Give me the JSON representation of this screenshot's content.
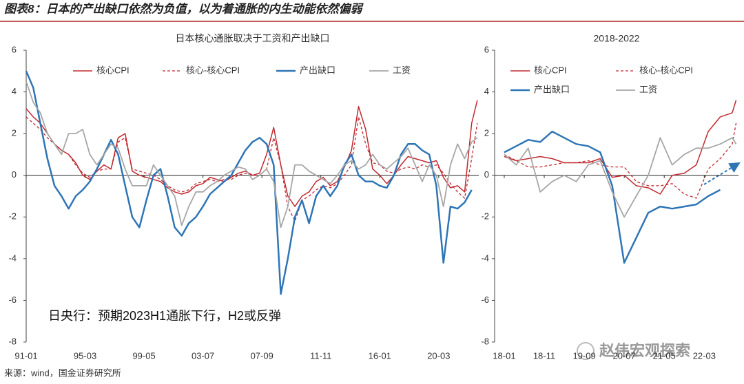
{
  "title": "图表8：日本的产出缺口依然为负值，以为着通胀的内生动能依然偏弱",
  "source": "来源：wind，国金证券研究所",
  "watermark": "赵伟宏观探索",
  "chart_data": [
    {
      "type": "line",
      "title": "日本核心通胀取决于工资和产出缺口",
      "annotation": "日央行：预期2023H1通胀下行，H2或反弹",
      "xlim": [
        1991,
        2023
      ],
      "xticks": [
        {
          "value": 1991.0,
          "label": "91-01"
        },
        {
          "value": 1995.167,
          "label": "95-03"
        },
        {
          "value": 1999.333,
          "label": "99-05"
        },
        {
          "value": 2003.5,
          "label": "03-07"
        },
        {
          "value": 2007.667,
          "label": "07-09"
        },
        {
          "value": 2011.833,
          "label": "11-11"
        },
        {
          "value": 2016.0,
          "label": "16-01"
        },
        {
          "value": 2020.167,
          "label": "20-03"
        }
      ],
      "ylim": [
        -8,
        6
      ],
      "yticks": [
        -8,
        -6,
        -4,
        -2,
        0,
        2,
        4,
        6
      ],
      "x": [
        1991,
        1991.5,
        1992,
        1992.5,
        1993,
        1993.5,
        1994,
        1994.5,
        1995,
        1995.5,
        1996,
        1996.5,
        1997,
        1997.5,
        1998,
        1998.5,
        1999,
        1999.5,
        2000,
        2000.5,
        2001,
        2001.5,
        2002,
        2002.5,
        2003,
        2003.5,
        2004,
        2004.5,
        2005,
        2005.5,
        2006,
        2006.5,
        2007,
        2007.5,
        2008,
        2008.5,
        2009,
        2009.5,
        2010,
        2010.5,
        2011,
        2011.5,
        2012,
        2012.5,
        2013,
        2013.5,
        2014,
        2014.5,
        2015,
        2015.5,
        2016,
        2016.5,
        2017,
        2017.5,
        2018,
        2018.5,
        2019,
        2019.5,
        2020,
        2020.5,
        2021,
        2021.5,
        2022,
        2022.5,
        2022.9
      ],
      "series": [
        {
          "name": "核心CPI",
          "color": "#c0282e",
          "dashed": false,
          "width": 1.5,
          "values": [
            3.2,
            2.8,
            2.5,
            2.0,
            1.5,
            1.2,
            1.0,
            0.6,
            0.0,
            -0.2,
            0.2,
            0.5,
            0.3,
            1.8,
            2.0,
            0.2,
            0.0,
            -0.1,
            -0.2,
            -0.3,
            -0.6,
            -0.8,
            -0.9,
            -0.8,
            -0.5,
            -0.4,
            -0.1,
            -0.2,
            -0.3,
            -0.1,
            0.1,
            0.2,
            0.0,
            0.1,
            1.0,
            2.3,
            0.5,
            -1.0,
            -1.5,
            -1.0,
            -0.8,
            -0.3,
            -0.1,
            -0.5,
            -0.3,
            0.4,
            1.2,
            3.3,
            2.2,
            0.3,
            0.0,
            -0.4,
            0.0,
            0.5,
            0.9,
            0.8,
            0.7,
            0.6,
            0.7,
            -0.1,
            -0.6,
            -0.5,
            -0.8,
            2.5,
            3.6
          ]
        },
        {
          "name": "核心-核心CPI",
          "color": "#c0282e",
          "dashed": true,
          "width": 1.3,
          "values": [
            2.8,
            2.5,
            2.2,
            1.8,
            1.5,
            1.2,
            1.0,
            0.5,
            0.1,
            -0.1,
            0.2,
            0.3,
            0.3,
            1.6,
            1.8,
            0.3,
            0.2,
            0.1,
            0.0,
            -0.2,
            -0.5,
            -0.7,
            -0.8,
            -0.7,
            -0.4,
            -0.3,
            -0.2,
            -0.3,
            -0.2,
            -0.2,
            0.0,
            0.1,
            0.0,
            0.0,
            0.3,
            1.8,
            0.5,
            -1.5,
            -2.2,
            -1.2,
            -1.0,
            -0.7,
            -0.5,
            -0.6,
            -0.4,
            0.0,
            0.5,
            2.8,
            1.5,
            0.6,
            0.5,
            0.2,
            0.1,
            0.3,
            0.4,
            0.3,
            0.5,
            0.4,
            0.5,
            0.1,
            -0.4,
            -0.8,
            -1.1,
            0.8,
            2.5
          ]
        },
        {
          "name": "产出缺口",
          "color": "#2e75b6",
          "dashed": false,
          "width": 2.5,
          "values": [
            5.0,
            4.2,
            2.5,
            0.8,
            -0.5,
            -1.0,
            -1.6,
            -1.0,
            -0.7,
            -0.3,
            0.3,
            1.0,
            1.7,
            1.0,
            -0.5,
            -2.0,
            -2.5,
            -1.2,
            0.0,
            0.3,
            -1.0,
            -2.5,
            -2.9,
            -2.3,
            -2.0,
            -1.5,
            -0.9,
            -0.6,
            -0.3,
            0.0,
            0.6,
            1.2,
            1.6,
            1.8,
            1.5,
            0.5,
            -5.7,
            -4.0,
            -2.0,
            -1.2,
            -2.3,
            -1.0,
            -0.5,
            -1.0,
            -0.5,
            0.5,
            1.0,
            0.0,
            -0.3,
            -0.3,
            -0.5,
            -0.6,
            0.0,
            1.0,
            1.5,
            1.5,
            1.2,
            1.0,
            -0.5,
            -4.2,
            -1.5,
            -1.6,
            -1.3,
            -0.7,
            null
          ]
        },
        {
          "name": "工资",
          "color": "#a6a6a6",
          "dashed": false,
          "width": 1.8,
          "values": [
            4.5,
            3.5,
            3.0,
            2.0,
            1.5,
            1.0,
            2.0,
            2.0,
            2.2,
            1.0,
            0.5,
            1.0,
            1.5,
            1.3,
            0.3,
            -0.5,
            -0.5,
            -0.5,
            0.5,
            0.0,
            -0.5,
            -1.0,
            -2.4,
            -1.5,
            -0.8,
            -0.8,
            -0.5,
            -0.3,
            0.0,
            0.2,
            0.4,
            0.3,
            -0.2,
            0.0,
            0.3,
            -0.3,
            -2.5,
            -1.5,
            0.5,
            0.5,
            0.2,
            0.0,
            -0.2,
            -0.4,
            0.0,
            0.5,
            0.7,
            0.3,
            0.5,
            1.0,
            0.5,
            0.3,
            0.6,
            0.9,
            1.3,
            0.5,
            -0.3,
            0.5,
            0.0,
            -1.5,
            0.5,
            1.5,
            0.8,
            1.6,
            1.8
          ]
        }
      ]
    },
    {
      "type": "line",
      "title": "2018-2022",
      "xlim": [
        2017.8,
        2022.88
      ],
      "xticks": [
        {
          "value": 2018.0,
          "label": "18-01"
        },
        {
          "value": 2018.833,
          "label": "18-11"
        },
        {
          "value": 2019.667,
          "label": "19-09"
        },
        {
          "value": 2020.5,
          "label": "20-07"
        },
        {
          "value": 2021.333,
          "label": "21-05"
        },
        {
          "value": 2022.167,
          "label": "22-03"
        }
      ],
      "ylim": [
        -8,
        6
      ],
      "yticks": [
        -8,
        -6,
        -4,
        -2,
        0,
        2,
        4,
        6
      ],
      "x": [
        2018.0,
        2018.25,
        2018.5,
        2018.75,
        2019.0,
        2019.25,
        2019.5,
        2019.75,
        2020.0,
        2020.25,
        2020.5,
        2020.75,
        2021.0,
        2021.25,
        2021.5,
        2021.75,
        2022.0,
        2022.25,
        2022.5,
        2022.75,
        2022.83
      ],
      "series": [
        {
          "name": "核心CPI",
          "color": "#c0282e",
          "dashed": false,
          "width": 1.5,
          "values": [
            0.9,
            0.7,
            0.8,
            0.9,
            0.8,
            0.6,
            0.6,
            0.6,
            0.8,
            -0.1,
            0.0,
            -0.5,
            -0.6,
            -0.9,
            0.0,
            0.1,
            0.5,
            2.1,
            2.8,
            3.0,
            3.6
          ]
        },
        {
          "name": "核心-核心CPI",
          "color": "#c0282e",
          "dashed": true,
          "width": 1.3,
          "values": [
            1.0,
            0.7,
            0.4,
            0.4,
            0.5,
            0.6,
            0.6,
            0.7,
            0.5,
            0.4,
            0.4,
            -0.3,
            -0.5,
            -0.5,
            -0.4,
            -0.9,
            -1.1,
            0.3,
            0.8,
            1.5,
            2.5
          ]
        },
        {
          "name": "产出缺口",
          "color": "#2e75b6",
          "dashed": false,
          "width": 2.5,
          "values": [
            1.1,
            1.4,
            1.7,
            1.6,
            2.1,
            1.8,
            1.5,
            1.4,
            1.1,
            -0.5,
            -4.2,
            -3.0,
            -1.8,
            -1.5,
            -1.6,
            -1.5,
            -1.4,
            -1.0,
            -0.7,
            null,
            null
          ]
        },
        {
          "name": "工资",
          "color": "#a6a6a6",
          "dashed": false,
          "width": 1.8,
          "values": [
            1.0,
            0.5,
            1.3,
            -0.8,
            -0.3,
            0.0,
            -0.3,
            0.5,
            0.7,
            -0.8,
            -2.0,
            -1.0,
            0.0,
            1.8,
            0.5,
            1.0,
            1.3,
            1.3,
            1.5,
            1.8,
            1.5
          ]
        }
      ]
    }
  ]
}
